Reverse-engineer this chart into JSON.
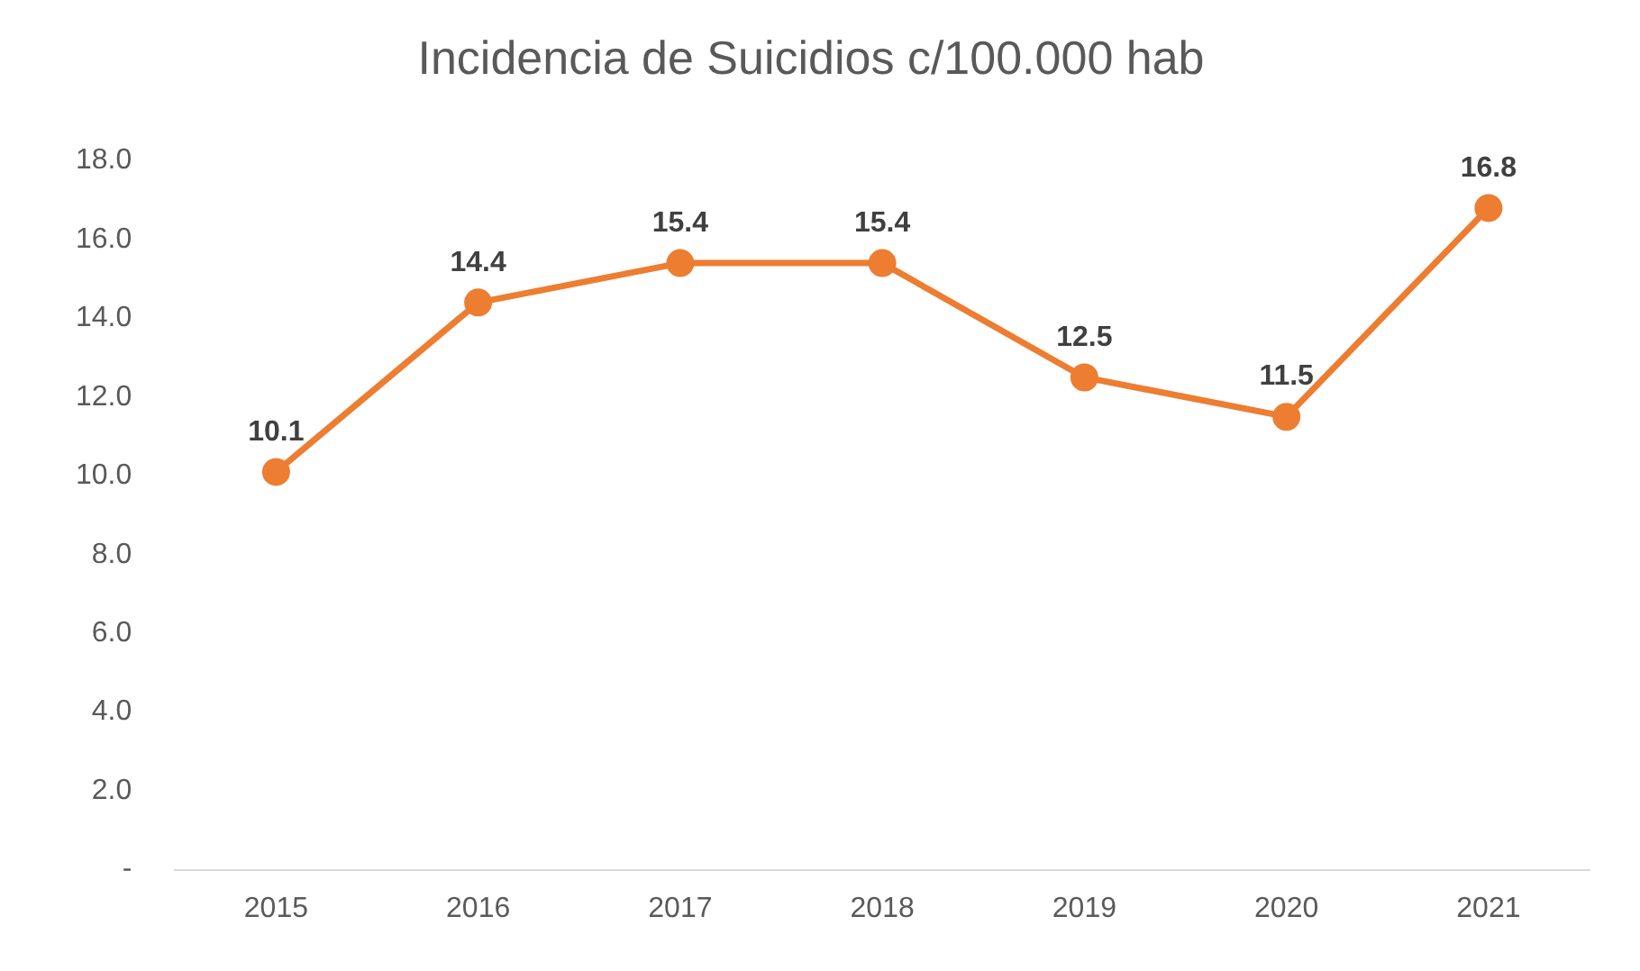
{
  "chart_data": {
    "type": "line",
    "title": "Incidencia de Suicidios c/100.000 hab",
    "categories": [
      "2015",
      "2016",
      "2017",
      "2018",
      "2019",
      "2020",
      "2021"
    ],
    "series": [
      {
        "color": "#ed7d31",
        "values": [
          10.1,
          14.4,
          15.4,
          15.4,
          12.5,
          11.5,
          16.8
        ]
      }
    ],
    "ylim": [
      0,
      18
    ],
    "yticks": [
      {
        "value": 0,
        "label": "-"
      },
      {
        "value": 2,
        "label": "2.0"
      },
      {
        "value": 4,
        "label": "4.0"
      },
      {
        "value": 6,
        "label": "6.0"
      },
      {
        "value": 8,
        "label": "8.0"
      },
      {
        "value": 10,
        "label": "10.0"
      },
      {
        "value": 12,
        "label": "12.0"
      },
      {
        "value": 14,
        "label": "14.0"
      },
      {
        "value": 16,
        "label": "16.0"
      },
      {
        "value": 18,
        "label": "18.0"
      }
    ],
    "grid": false,
    "legend": false,
    "marker": "circle",
    "line_style": "solid",
    "data_labels": true
  }
}
